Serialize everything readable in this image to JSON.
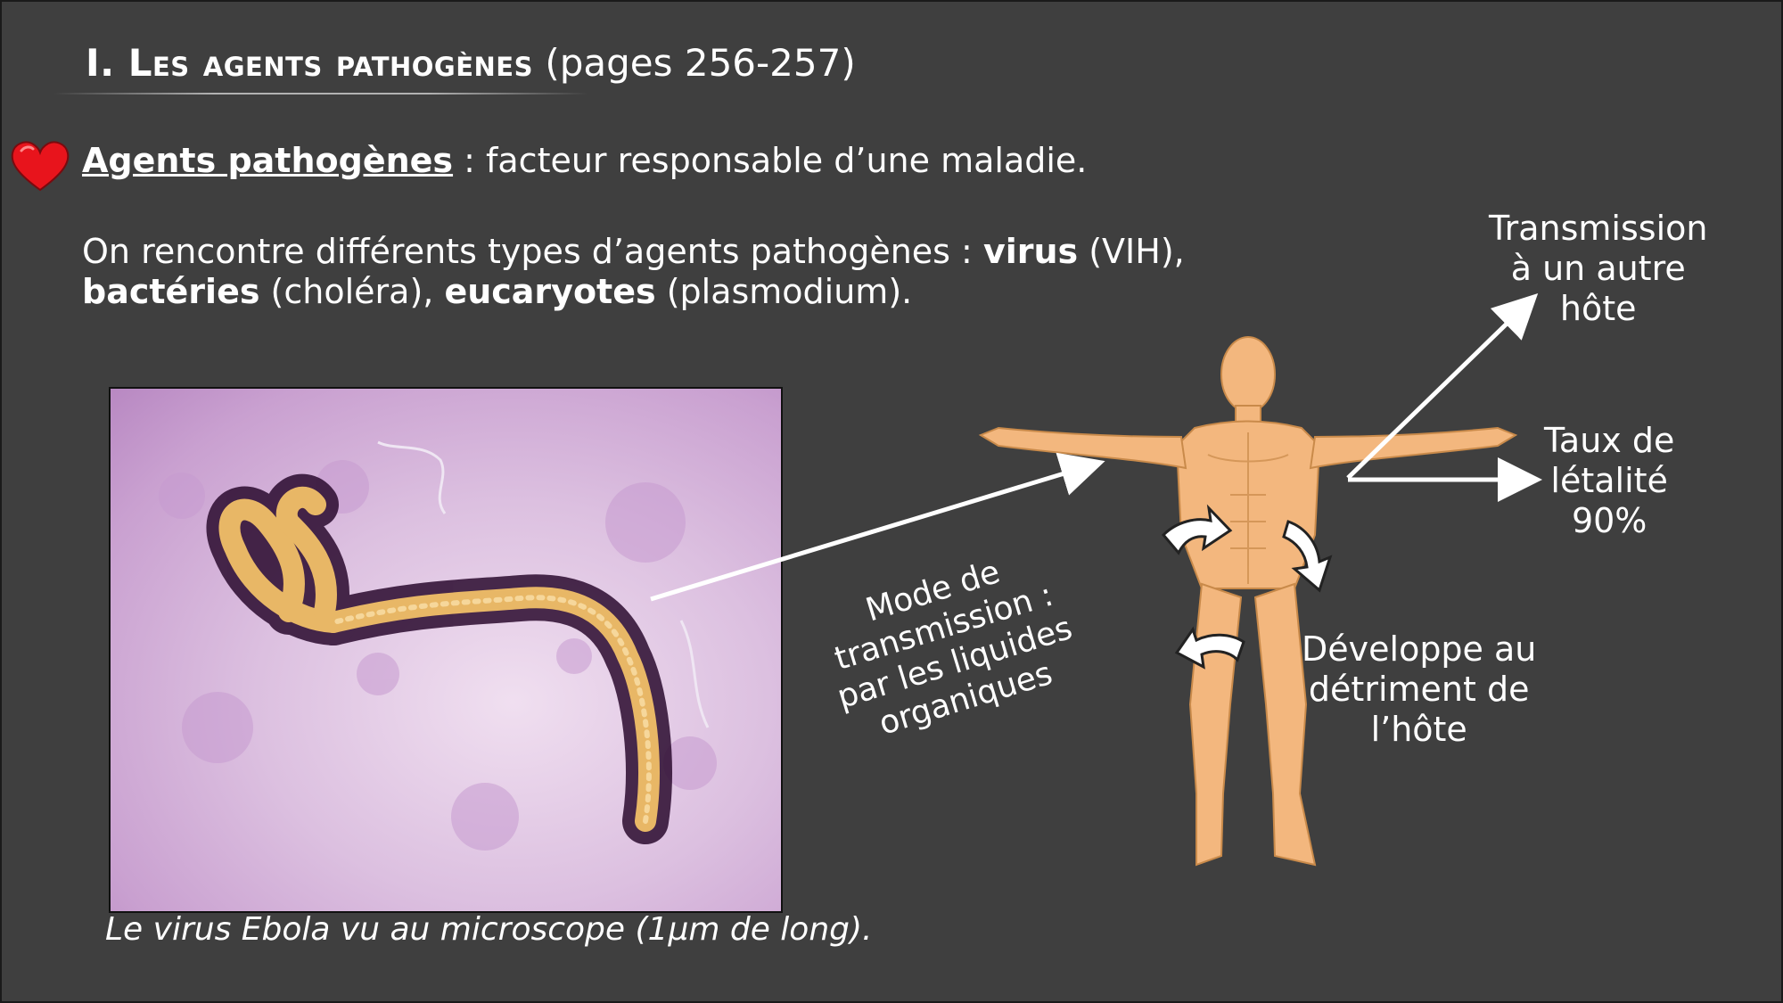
{
  "title": {
    "main": "I. Les agents pathogènes",
    "pages": "(pages 256-257)"
  },
  "definition": {
    "term": "Agents pathogènes",
    "text": " : facteur responsable d’une maladie."
  },
  "types": {
    "intro": "On rencontre différents types d’agents pathogènes : ",
    "virus": "virus",
    "virus_example": " (VIH),",
    "bacteria": "bactéries",
    "bacteria_example": " (choléra), ",
    "eukaryotes": "eucaryotes",
    "eukaryotes_example": " (plasmodium)."
  },
  "photo_caption": "Le virus Ebola vu au microscope (1µm de long).",
  "labels": {
    "transmission_other_host": [
      "Transmission",
      "à un autre",
      "hôte"
    ],
    "lethality": [
      "Taux de",
      "létalité",
      "90%"
    ],
    "develops": [
      "Développe au",
      "détriment de",
      "l’hôte"
    ],
    "mode": [
      "Mode de",
      "transmission :",
      "par les liquides",
      "organiques"
    ]
  },
  "colors": {
    "background": "#3f3f3f",
    "heart": "#e8141c",
    "virus": "#e8b766",
    "skin": "#f3b77e"
  }
}
